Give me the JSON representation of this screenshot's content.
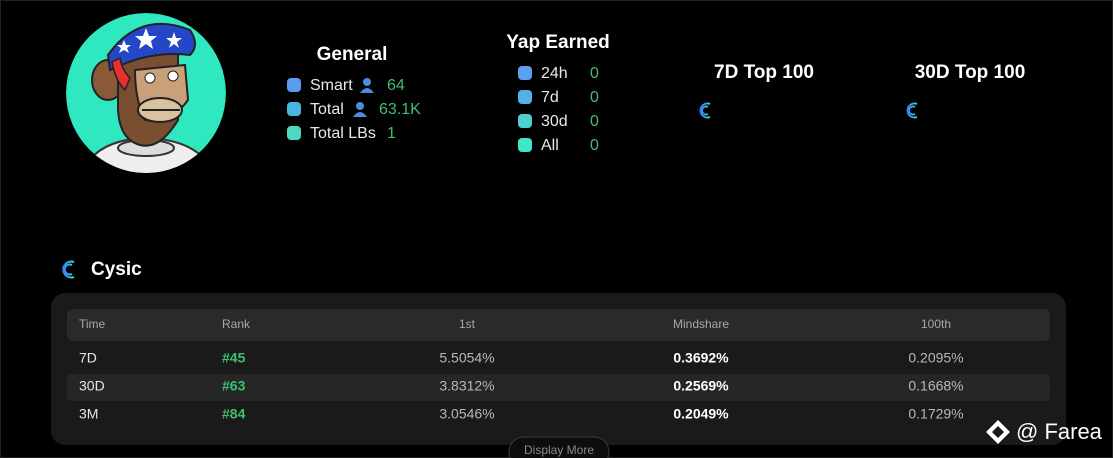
{
  "general": {
    "title": "General",
    "rows": [
      {
        "label": "Smart",
        "value": "64"
      },
      {
        "label": "Total",
        "value": "63.1K"
      },
      {
        "label": "Total LBs",
        "value": "1"
      }
    ]
  },
  "yap_earned": {
    "title": "Yap Earned",
    "rows": [
      {
        "label": "24h",
        "value": "0"
      },
      {
        "label": "7d",
        "value": "0"
      },
      {
        "label": "30d",
        "value": "0"
      },
      {
        "label": "All",
        "value": "0"
      }
    ]
  },
  "top_7d": {
    "title": "7D Top 100"
  },
  "top_30d": {
    "title": "30D Top 100"
  },
  "project": {
    "name": "Cysic",
    "table": {
      "columns": [
        "Time",
        "Rank",
        "1st",
        "Mindshare",
        "100th"
      ],
      "rows": [
        [
          "7D",
          "#45",
          "5.5054%",
          "0.3692%",
          "0.2095%"
        ],
        [
          "30D",
          "#63",
          "3.8312%",
          "0.2569%",
          "0.1668%"
        ],
        [
          "3M",
          "#84",
          "3.0546%",
          "0.2049%",
          "0.1729%"
        ]
      ]
    },
    "button": "Display More"
  },
  "watermark": "@ Farea"
}
